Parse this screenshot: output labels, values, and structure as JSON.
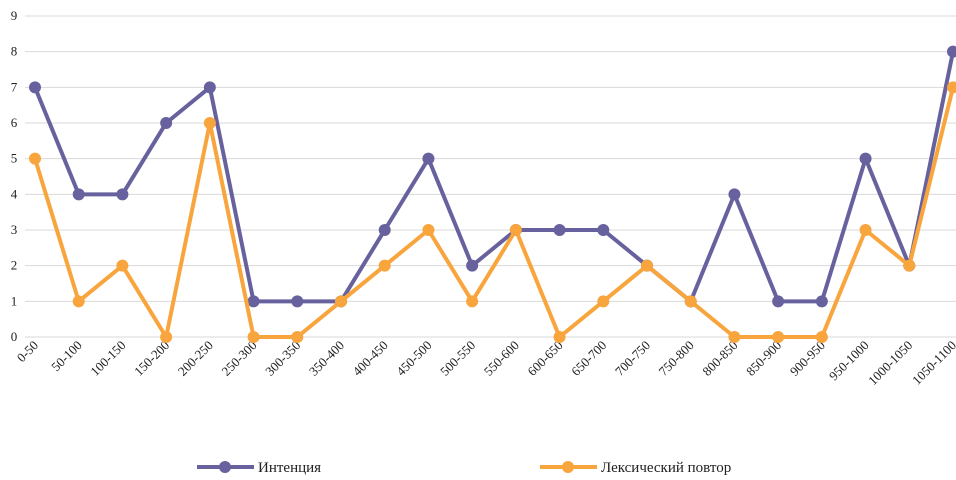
{
  "chart_data": {
    "type": "line",
    "categories": [
      "0-50",
      "50-100",
      "100-150",
      "150-200",
      "200-250",
      "250-300",
      "300-350",
      "350-400",
      "400-450",
      "450-500",
      "500-550",
      "550-600",
      "600-650",
      "650-700",
      "700-750",
      "750-800",
      "800-850",
      "850-900",
      "900-950",
      "950-1000",
      "1000-1050",
      "1050-1100"
    ],
    "series": [
      {
        "name": "Интенция",
        "color": "#67619e",
        "values": [
          7,
          4,
          4,
          6,
          7,
          1,
          1,
          1,
          3,
          5,
          2,
          3,
          3,
          3,
          2,
          1,
          4,
          1,
          1,
          5,
          2,
          8
        ]
      },
      {
        "name": "Лексический повтор",
        "color": "#f9a53d",
        "values": [
          5,
          1,
          2,
          0,
          6,
          0,
          0,
          1,
          2,
          3,
          1,
          3,
          0,
          1,
          2,
          1,
          0,
          0,
          0,
          3,
          2,
          7
        ]
      }
    ],
    "ylim": [
      0,
      9
    ],
    "yticks": [
      0,
      1,
      2,
      3,
      4,
      5,
      6,
      7,
      8,
      9
    ],
    "grid": true,
    "legend": "bottom"
  }
}
